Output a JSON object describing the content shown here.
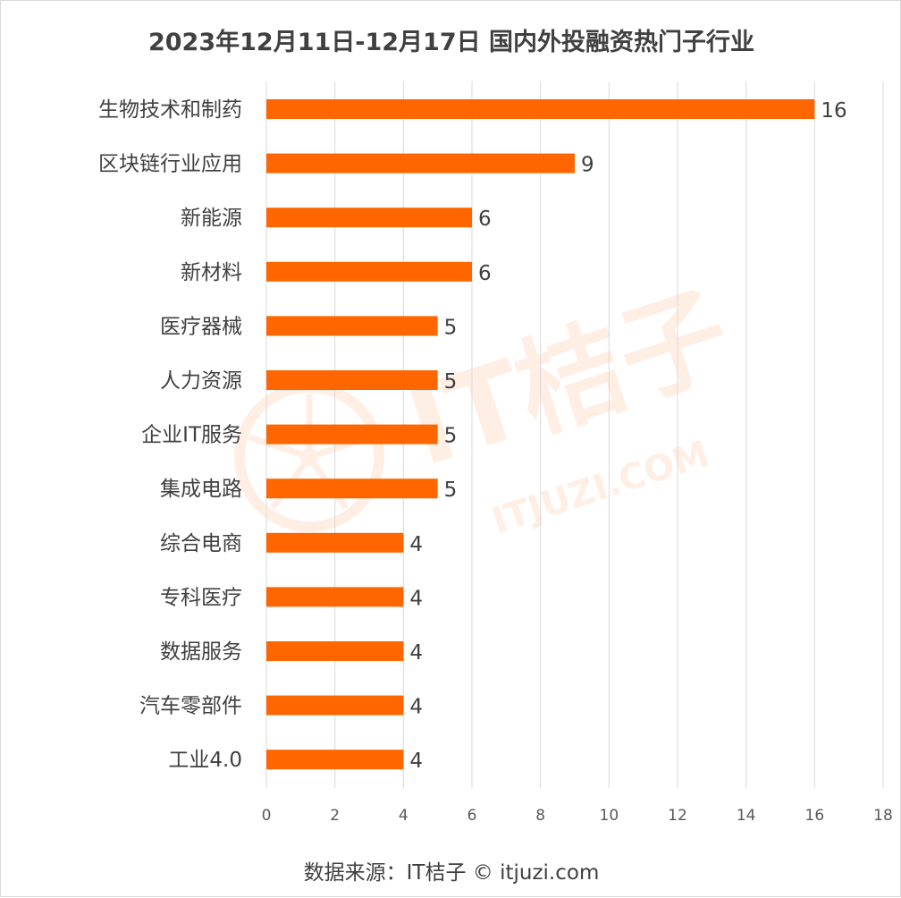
{
  "watermark": {
    "brand": "IT桔子",
    "domain": "ITJUZI.COM",
    "color": "#ff6600"
  },
  "footer": {
    "source": "数据来源：IT桔子 © itjuzi.com"
  },
  "chart_data": {
    "type": "bar",
    "orientation": "horizontal",
    "title": "2023年12月11日-12月17日 国内外投融资热门子行业",
    "categories": [
      "生物技术和制药",
      "区块链行业应用",
      "新能源",
      "新材料",
      "医疗器械",
      "人力资源",
      "企业IT服务",
      "集成电路",
      "综合电商",
      "专科医疗",
      "数据服务",
      "汽车零部件",
      "工业4.0"
    ],
    "values": [
      16,
      9,
      6,
      6,
      5,
      5,
      5,
      5,
      4,
      4,
      4,
      4,
      4
    ],
    "value_labels": [
      "16",
      "9",
      "6",
      "6",
      "5",
      "5",
      "5",
      "5",
      "4",
      "4",
      "4",
      "4",
      "4"
    ],
    "xlim": [
      0,
      18
    ],
    "xticks": [
      0,
      2,
      4,
      6,
      8,
      10,
      12,
      14,
      16,
      18
    ],
    "xtick_labels": [
      "0",
      "2",
      "4",
      "6",
      "8",
      "10",
      "12",
      "14",
      "16",
      "18"
    ],
    "xlabel": "",
    "ylabel": "",
    "grid": "vertical",
    "bar_color": "#ff6600",
    "legend": "none"
  }
}
